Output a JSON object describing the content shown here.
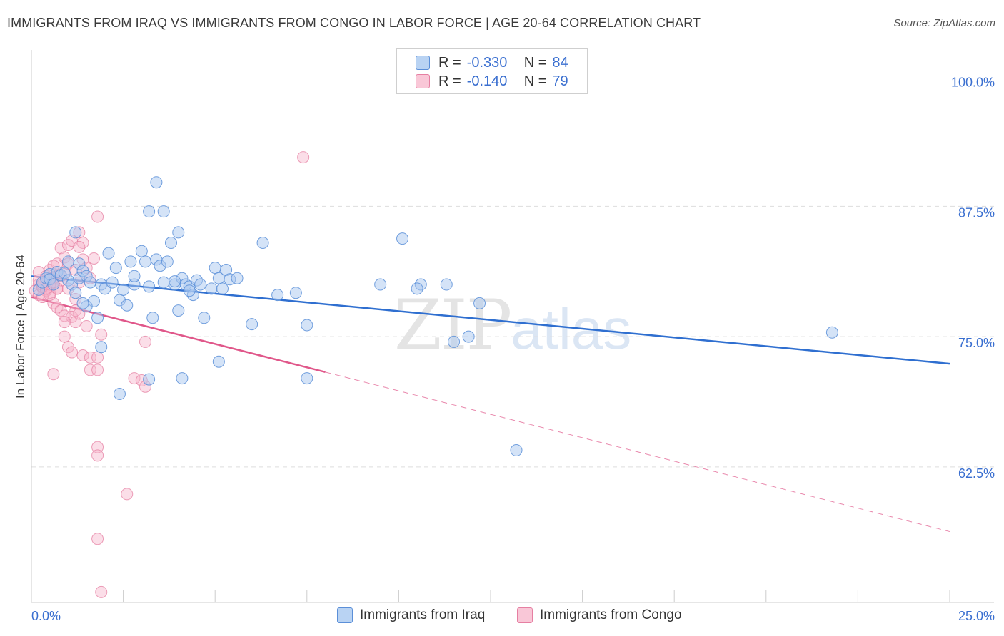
{
  "title": "IMMIGRANTS FROM IRAQ VS IMMIGRANTS FROM CONGO IN LABOR FORCE | AGE 20-64 CORRELATION CHART",
  "source": "Source: ZipAtlas.com",
  "watermark": {
    "zip": "ZIP",
    "atlas": "atlas"
  },
  "legend": {
    "r_label": "R =",
    "n_label": "N =",
    "rows": [
      {
        "r": "-0.330",
        "n": "84"
      },
      {
        "r": "-0.140",
        "n": "79"
      }
    ]
  },
  "colors": {
    "iraq_fill": "#a9c8f0",
    "iraq_stroke": "#5b8fd8",
    "iraq_line": "#2f6fd0",
    "congo_fill": "#f7b6cb",
    "congo_stroke": "#e67fa2",
    "congo_line": "#e0578a",
    "axis_label": "#3a6fd0",
    "grid": "#dddddd"
  },
  "chart_data": {
    "type": "scatter",
    "title": "IMMIGRANTS FROM IRAQ VS IMMIGRANTS FROM CONGO IN LABOR FORCE | AGE 20-64 CORRELATION CHART",
    "xlabel": "",
    "ylabel": "In Labor Force | Age 20-64",
    "xlim": [
      0,
      25
    ],
    "ylim": [
      49.5,
      102.5
    ],
    "x_tick_labels": [
      "0.0%",
      "25.0%"
    ],
    "y_ticks": [
      62.5,
      75.0,
      87.5,
      100.0
    ],
    "y_tick_labels": [
      "62.5%",
      "75.0%",
      "87.5%",
      "100.0%"
    ],
    "grid": true,
    "legend_position": "bottom",
    "series": [
      {
        "name": "Immigrants from Iraq",
        "R": -0.33,
        "N": 84,
        "trend": {
          "x0": 0.0,
          "y0": 80.8,
          "x1": 25.0,
          "y1": 72.4
        },
        "points": [
          [
            0.2,
            79.5
          ],
          [
            0.3,
            80.2
          ],
          [
            0.4,
            80.6
          ],
          [
            0.5,
            81.0
          ],
          [
            0.5,
            80.5
          ],
          [
            0.6,
            80.0
          ],
          [
            0.7,
            81.2
          ],
          [
            0.8,
            80.9
          ],
          [
            0.9,
            81.1
          ],
          [
            1.0,
            80.4
          ],
          [
            1.1,
            80.0
          ],
          [
            1.2,
            79.2
          ],
          [
            1.3,
            80.6
          ],
          [
            1.0,
            82.2
          ],
          [
            1.3,
            82.0
          ],
          [
            1.4,
            81.3
          ],
          [
            1.5,
            80.8
          ],
          [
            1.6,
            80.2
          ],
          [
            1.7,
            78.4
          ],
          [
            1.8,
            76.8
          ],
          [
            1.9,
            80.0
          ],
          [
            2.0,
            79.6
          ],
          [
            2.1,
            83.0
          ],
          [
            2.2,
            80.2
          ],
          [
            2.3,
            81.6
          ],
          [
            2.4,
            78.5
          ],
          [
            2.5,
            79.5
          ],
          [
            2.6,
            78.0
          ],
          [
            2.7,
            82.2
          ],
          [
            2.8,
            80.0
          ],
          [
            3.0,
            83.2
          ],
          [
            3.1,
            82.2
          ],
          [
            3.2,
            79.8
          ],
          [
            3.3,
            76.8
          ],
          [
            3.4,
            82.4
          ],
          [
            3.5,
            81.8
          ],
          [
            3.6,
            80.2
          ],
          [
            3.7,
            82.2
          ],
          [
            3.8,
            84.0
          ],
          [
            3.9,
            80.0
          ],
          [
            4.0,
            77.5
          ],
          [
            4.1,
            80.6
          ],
          [
            4.2,
            80.0
          ],
          [
            4.3,
            79.8
          ],
          [
            4.4,
            79.0
          ],
          [
            4.5,
            80.4
          ],
          [
            4.6,
            80.0
          ],
          [
            4.7,
            76.8
          ],
          [
            4.9,
            79.6
          ],
          [
            5.0,
            81.6
          ],
          [
            5.1,
            80.6
          ],
          [
            5.3,
            81.4
          ],
          [
            5.4,
            80.5
          ],
          [
            5.6,
            80.6
          ],
          [
            6.0,
            76.2
          ],
          [
            6.3,
            84.0
          ],
          [
            6.7,
            79.0
          ],
          [
            7.2,
            79.2
          ],
          [
            7.5,
            76.1
          ],
          [
            1.2,
            85.0
          ],
          [
            3.2,
            87.0
          ],
          [
            3.6,
            87.0
          ],
          [
            3.4,
            89.8
          ],
          [
            4.0,
            85.0
          ],
          [
            1.5,
            77.9
          ],
          [
            1.4,
            78.2
          ],
          [
            2.8,
            80.8
          ],
          [
            3.9,
            80.3
          ],
          [
            5.2,
            79.6
          ],
          [
            4.3,
            79.4
          ],
          [
            1.9,
            74.0
          ],
          [
            3.2,
            70.9
          ],
          [
            4.1,
            71.0
          ],
          [
            5.1,
            72.6
          ],
          [
            2.4,
            69.5
          ],
          [
            7.5,
            71.0
          ],
          [
            9.5,
            80.0
          ],
          [
            10.6,
            80.0
          ],
          [
            10.5,
            79.6
          ],
          [
            11.3,
            80.0
          ],
          [
            12.2,
            78.2
          ],
          [
            11.9,
            75.0
          ],
          [
            11.5,
            74.5
          ],
          [
            13.2,
            64.1
          ],
          [
            21.8,
            75.4
          ],
          [
            10.1,
            84.4
          ]
        ]
      },
      {
        "name": "Immigrants from Congo",
        "R": -0.14,
        "N": 79,
        "trend": {
          "x0": 0.0,
          "y0": 78.8,
          "x1": 25.0,
          "y1": 56.3,
          "solid_until_x": 8.0
        },
        "points": [
          [
            0.1,
            79.4
          ],
          [
            0.2,
            80.0
          ],
          [
            0.2,
            79.0
          ],
          [
            0.3,
            79.7
          ],
          [
            0.3,
            80.2
          ],
          [
            0.4,
            79.5
          ],
          [
            0.4,
            80.6
          ],
          [
            0.5,
            79.2
          ],
          [
            0.5,
            81.4
          ],
          [
            0.6,
            80.0
          ],
          [
            0.6,
            78.2
          ],
          [
            0.7,
            82.0
          ],
          [
            0.7,
            79.6
          ],
          [
            0.8,
            80.4
          ],
          [
            0.8,
            83.5
          ],
          [
            0.9,
            82.6
          ],
          [
            0.9,
            81.0
          ],
          [
            1.0,
            83.8
          ],
          [
            1.0,
            82.0
          ],
          [
            1.1,
            84.2
          ],
          [
            1.2,
            81.4
          ],
          [
            1.2,
            78.6
          ],
          [
            1.3,
            85.0
          ],
          [
            1.3,
            80.2
          ],
          [
            1.4,
            82.4
          ],
          [
            1.4,
            84.0
          ],
          [
            1.5,
            81.6
          ],
          [
            1.6,
            80.6
          ],
          [
            1.7,
            82.5
          ],
          [
            1.2,
            77.5
          ],
          [
            0.7,
            77.8
          ],
          [
            0.8,
            77.5
          ],
          [
            0.9,
            77.0
          ],
          [
            1.1,
            76.9
          ],
          [
            1.2,
            76.4
          ],
          [
            1.3,
            77.2
          ],
          [
            1.5,
            76.0
          ],
          [
            0.9,
            75.0
          ],
          [
            1.0,
            74.0
          ],
          [
            1.1,
            73.5
          ],
          [
            1.4,
            73.2
          ],
          [
            1.6,
            73.0
          ],
          [
            1.8,
            73.0
          ],
          [
            0.6,
            71.4
          ],
          [
            1.6,
            71.8
          ],
          [
            1.8,
            71.8
          ],
          [
            1.9,
            75.2
          ],
          [
            0.4,
            79.4
          ],
          [
            0.5,
            79.8
          ],
          [
            0.6,
            80.6
          ],
          [
            1.8,
            86.5
          ],
          [
            7.4,
            92.2
          ],
          [
            3.1,
            74.5
          ],
          [
            2.8,
            71.0
          ],
          [
            3.0,
            70.8
          ],
          [
            3.1,
            70.2
          ],
          [
            1.8,
            64.4
          ],
          [
            1.8,
            63.6
          ],
          [
            2.6,
            59.9
          ],
          [
            1.8,
            55.6
          ],
          [
            1.9,
            50.5
          ],
          [
            0.2,
            81.2
          ],
          [
            0.3,
            78.8
          ],
          [
            0.4,
            80.8
          ],
          [
            0.5,
            79.0
          ],
          [
            0.6,
            81.8
          ],
          [
            0.7,
            79.6
          ],
          [
            0.3,
            79.8
          ],
          [
            0.4,
            80.2
          ],
          [
            0.5,
            80.0
          ],
          [
            0.8,
            80.8
          ],
          [
            1.0,
            79.6
          ],
          [
            0.2,
            80.4
          ],
          [
            0.3,
            80.0
          ],
          [
            0.4,
            79.6
          ],
          [
            0.5,
            80.6
          ],
          [
            0.6,
            80.2
          ],
          [
            0.9,
            76.4
          ],
          [
            1.3,
            83.6
          ]
        ]
      }
    ]
  }
}
